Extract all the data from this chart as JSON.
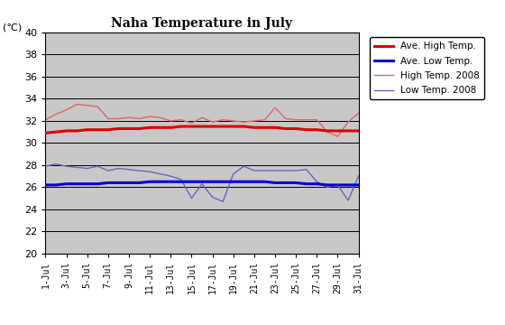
{
  "title": "Naha Temperature in July",
  "unit_label": "(℃)",
  "ylim": [
    20,
    40
  ],
  "yticks": [
    20,
    22,
    24,
    26,
    28,
    30,
    32,
    34,
    36,
    38,
    40
  ],
  "days": [
    1,
    2,
    3,
    4,
    5,
    6,
    7,
    8,
    9,
    10,
    11,
    12,
    13,
    14,
    15,
    16,
    17,
    18,
    19,
    20,
    21,
    22,
    23,
    24,
    25,
    26,
    27,
    28,
    29,
    30,
    31
  ],
  "xtick_labels": [
    "1-Jul",
    "3-Jul",
    "5-Jul",
    "7-Jul",
    "9-Jul",
    "11-Jul",
    "13-Jul",
    "15-Jul",
    "17-Jul",
    "19-Jul",
    "21-Jul",
    "23-Jul",
    "25-Jul",
    "27-Jul",
    "29-Jul",
    "31-Jul"
  ],
  "xtick_positions": [
    1,
    3,
    5,
    7,
    9,
    11,
    13,
    15,
    17,
    19,
    21,
    23,
    25,
    27,
    29,
    31
  ],
  "ave_high": [
    30.9,
    31.0,
    31.1,
    31.1,
    31.2,
    31.2,
    31.2,
    31.3,
    31.3,
    31.3,
    31.4,
    31.4,
    31.4,
    31.5,
    31.5,
    31.5,
    31.5,
    31.5,
    31.5,
    31.5,
    31.4,
    31.4,
    31.4,
    31.3,
    31.3,
    31.2,
    31.2,
    31.1,
    31.1,
    31.1,
    31.1
  ],
  "ave_low": [
    26.2,
    26.2,
    26.3,
    26.3,
    26.3,
    26.3,
    26.4,
    26.4,
    26.4,
    26.4,
    26.5,
    26.5,
    26.5,
    26.5,
    26.5,
    26.5,
    26.5,
    26.5,
    26.5,
    26.5,
    26.5,
    26.5,
    26.4,
    26.4,
    26.4,
    26.3,
    26.3,
    26.2,
    26.2,
    26.2,
    26.2
  ],
  "high_2008": [
    32.1,
    32.6,
    33.0,
    33.5,
    33.4,
    33.3,
    32.2,
    32.2,
    32.3,
    32.2,
    32.4,
    32.3,
    32.0,
    32.1,
    31.8,
    32.3,
    31.9,
    32.1,
    32.0,
    31.9,
    32.0,
    32.1,
    33.2,
    32.2,
    32.1,
    32.1,
    32.1,
    31.0,
    30.6,
    31.9,
    32.7
  ],
  "low_2008": [
    27.9,
    28.1,
    27.9,
    27.8,
    27.7,
    27.9,
    27.5,
    27.7,
    27.6,
    27.5,
    27.4,
    27.2,
    27.0,
    26.7,
    25.0,
    26.3,
    25.1,
    24.7,
    27.2,
    27.9,
    27.5,
    27.5,
    27.5,
    27.5,
    27.5,
    27.6,
    26.5,
    26.0,
    26.2,
    24.8,
    27.0
  ],
  "ave_high_color": "#dd0000",
  "ave_low_color": "#0000dd",
  "high_2008_color": "#dd6666",
  "low_2008_color": "#6666bb",
  "bg_color": "#c8c8c8",
  "fig_bg_color": "#ffffff",
  "grid_color": "#000000",
  "legend_labels": [
    "Ave. High Temp.",
    "Ave. Low Temp.",
    "High Temp. 2008",
    "Low Temp. 2008"
  ]
}
